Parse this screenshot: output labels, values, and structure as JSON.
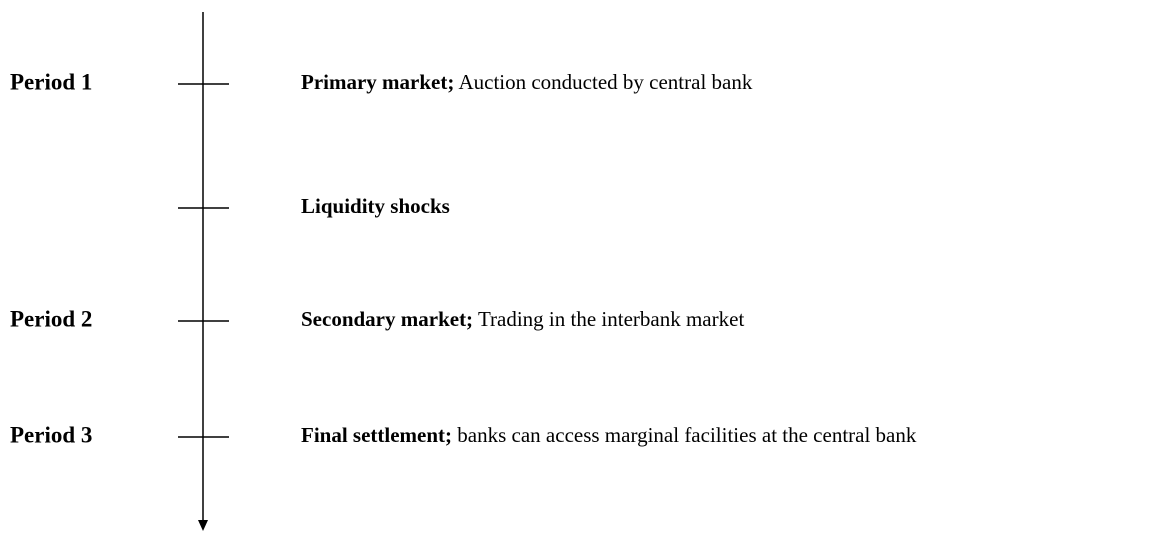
{
  "events": [
    {
      "period": "Period 1",
      "heading": "Primary market;",
      "text": "Auction conducted by central bank"
    },
    {
      "heading": "Liquidity shocks"
    },
    {
      "period": "Period 2",
      "heading": "Secondary market;",
      "text": "Trading in the interbank market"
    },
    {
      "period": "Period 3",
      "heading": "Final settlement;",
      "text": "banks can access marginal facilities at the central bank"
    }
  ]
}
